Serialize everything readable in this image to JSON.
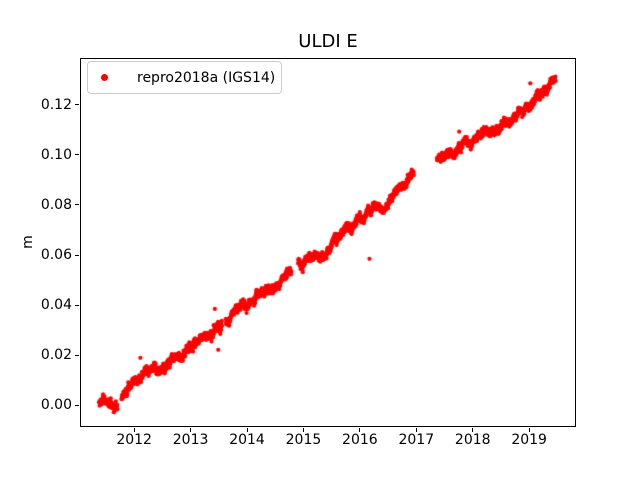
{
  "title": "ULDI E",
  "chart_data": {
    "type": "scatter",
    "title": "ULDI E",
    "xlabel": "",
    "ylabel": "m",
    "grid": false,
    "legend": {
      "location": "upper left",
      "entries": [
        "repro2018a (IGS14)"
      ]
    },
    "xlim": [
      2011.04,
      2019.83
    ],
    "ylim": [
      -0.0086,
      0.1386
    ],
    "x_ticks": [
      2012,
      2013,
      2014,
      2015,
      2016,
      2017,
      2018,
      2019
    ],
    "y_ticks": [
      0.0,
      0.02,
      0.04,
      0.06,
      0.08,
      0.1,
      0.12
    ],
    "series": [
      {
        "name": "repro2018a (IGS14)",
        "color": "#ff0000",
        "marker": "point",
        "marker_px_radius": 2.1,
        "cadence_days": 1,
        "t_start": 2011.38,
        "t_end": 2019.47,
        "trend_anchors": [
          [
            2011.38,
            0.0005
          ],
          [
            2011.7,
            0.0015
          ],
          [
            2011.8,
            0.005
          ],
          [
            2012.0,
            0.009
          ],
          [
            2012.2,
            0.0135
          ],
          [
            2012.55,
            0.015
          ],
          [
            2012.9,
            0.02
          ],
          [
            2013.15,
            0.0265
          ],
          [
            2013.5,
            0.0305
          ],
          [
            2013.72,
            0.037
          ],
          [
            2014.0,
            0.042
          ],
          [
            2014.3,
            0.045
          ],
          [
            2014.6,
            0.049
          ],
          [
            2014.78,
            0.054
          ],
          [
            2014.92,
            0.057
          ],
          [
            2015.15,
            0.059
          ],
          [
            2015.35,
            0.061
          ],
          [
            2015.65,
            0.07
          ],
          [
            2016.0,
            0.0735
          ],
          [
            2016.3,
            0.078
          ],
          [
            2016.6,
            0.084
          ],
          [
            2016.95,
            0.0915
          ],
          [
            2017.37,
            0.0985
          ],
          [
            2017.6,
            0.101
          ],
          [
            2017.85,
            0.105
          ],
          [
            2018.1,
            0.1085
          ],
          [
            2018.45,
            0.112
          ],
          [
            2018.7,
            0.1145
          ],
          [
            2019.0,
            0.1205
          ],
          [
            2019.25,
            0.1265
          ],
          [
            2019.47,
            0.1295
          ]
        ],
        "gaps": [
          [
            2011.705,
            2011.775
          ],
          [
            2013.555,
            2013.625
          ],
          [
            2014.785,
            2014.905
          ],
          [
            2016.955,
            2017.365
          ]
        ],
        "outliers": [
          [
            2012.11,
            0.019
          ],
          [
            2013.43,
            0.0385
          ],
          [
            2013.49,
            0.0222
          ],
          [
            2016.17,
            0.0585
          ],
          [
            2017.76,
            0.1092
          ],
          [
            2019.02,
            0.1285
          ]
        ],
        "noise": {
          "walk_ar": 0.97,
          "walk_innov_m": 0.0003,
          "white_std_m": 0.0007,
          "seed": 7
        }
      }
    ]
  }
}
